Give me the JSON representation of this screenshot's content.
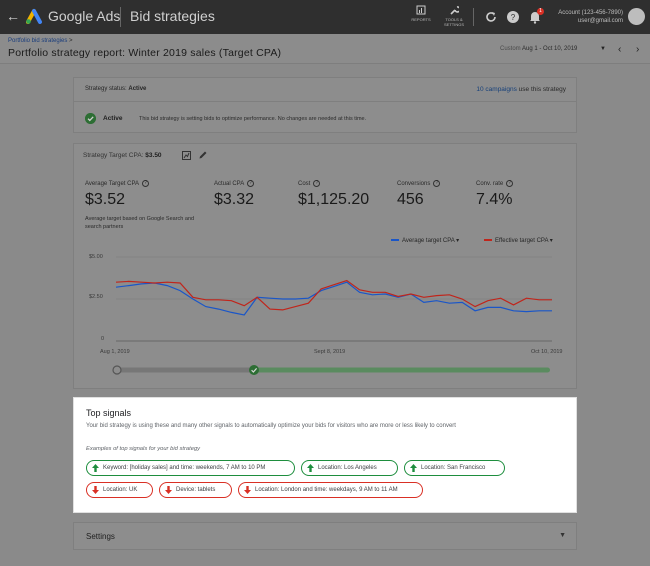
{
  "topbar": {
    "product": "Google Ads",
    "page_title": "Bid strategies",
    "reports_label": "REPORTS",
    "tools_label": "TOOLS & SETTINGS",
    "notification_count": "1",
    "account_id": "Account (123-456-7890)",
    "account_email": "user@gmail.com"
  },
  "header": {
    "breadcrumb": "Portfolio bid strategies",
    "breadcrumb_arrow": ">",
    "title": "Portfolio strategy report: Winter 2019 sales (Target CPA)",
    "date_label": "Custom",
    "date_value": "Aug 1 - Oct 10, 2019"
  },
  "status": {
    "label": "Strategy status:",
    "value": "Active",
    "campaigns_link": "10 campaigns",
    "campaigns_suffix": "use this strategy",
    "active_label": "Active",
    "active_desc": "This bid strategy is setting bids to optimize performance. No changes are needed at this time."
  },
  "strategy": {
    "target_label": "Strategy Target CPA:",
    "target_value": "$3.50"
  },
  "metrics": [
    {
      "label": "Average Target CPA",
      "value": "$3.52"
    },
    {
      "label": "Actual CPA",
      "value": "$3.32"
    },
    {
      "label": "Cost",
      "value": "$1,125.20"
    },
    {
      "label": "Conversions",
      "value": "456"
    },
    {
      "label": "Conv. rate",
      "value": "7.4%"
    }
  ],
  "metric_note": "Average target based on Google Search and search partners",
  "chart_data": {
    "type": "line",
    "xlabels": [
      "Aug 1, 2019",
      "Sept 8, 2019",
      "Oct 10, 2019"
    ],
    "yticks": [
      "$5.00",
      "$2.50",
      "0"
    ],
    "ylim": [
      0,
      5
    ],
    "legend_position": "top-right",
    "series": [
      {
        "name": "Average target CPA",
        "color": "#1a56c8",
        "values": [
          3.2,
          3.3,
          3.4,
          3.45,
          3.3,
          3.0,
          2.5,
          2.05,
          1.9,
          1.7,
          1.55,
          2.6,
          2.55,
          2.5,
          2.5,
          2.55,
          3.0,
          3.25,
          3.5,
          2.9,
          2.75,
          2.8,
          2.6,
          2.8,
          2.3,
          2.4,
          2.25,
          2.3,
          1.8,
          2.0,
          2.0,
          1.8,
          1.75,
          1.8,
          1.8
        ]
      },
      {
        "name": "Effective target CPA",
        "color": "#c0251b",
        "values": [
          3.5,
          3.55,
          3.5,
          3.45,
          3.5,
          3.45,
          2.6,
          2.45,
          2.45,
          2.4,
          2.1,
          2.6,
          1.9,
          1.85,
          2.05,
          2.25,
          3.1,
          3.35,
          3.6,
          3.05,
          2.9,
          2.9,
          2.65,
          2.8,
          2.6,
          2.7,
          2.75,
          2.5,
          2.05,
          2.4,
          2.55,
          2.15,
          2.55,
          2.45,
          2.45
        ]
      }
    ]
  },
  "signals": {
    "title": "Top signals",
    "description": "Your bid strategy is using these and many other signals to automatically optimize your bids for visitors who are more or less likely to convert",
    "examples_label": "Examples of top signals for your bid strategy",
    "positive": [
      "Keyword: [holiday sales] and time: weekends, 7 AM to 10 PM",
      "Location: Los Angeles",
      "Location: San Francisco"
    ],
    "negative": [
      "Location: UK",
      "Device: tablets",
      "Location: London and time: weekdays, 9 AM to 11 AM"
    ]
  },
  "settings": {
    "label": "Settings"
  },
  "colors": {
    "positive": "#1e8e3e",
    "negative": "#d93025",
    "link": "#1a73e8"
  }
}
